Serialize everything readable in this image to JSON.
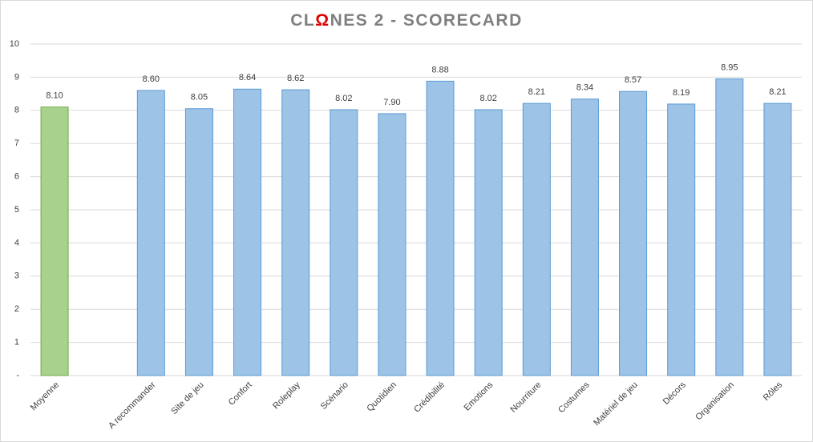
{
  "chart_data": {
    "type": "bar",
    "title": [
      {
        "text": "CL",
        "color": "#7f7f7f"
      },
      {
        "text": "Ω",
        "color": "#e00000"
      },
      {
        "text": "NES 2 - SCORECARD",
        "color": "#7f7f7f"
      }
    ],
    "categories": [
      "Moyenne",
      null,
      "A recommander",
      "Site de jeu",
      "Confort",
      "Roleplay",
      "Scénario",
      "Quotidien",
      "Crédibilité",
      "Emotions",
      "Nourriture",
      "Costumes",
      "Matériel de jeu",
      "Décors",
      "Organisation",
      "Rôles"
    ],
    "values": [
      8.1,
      null,
      8.6,
      8.05,
      8.64,
      8.62,
      8.02,
      7.9,
      8.88,
      8.02,
      8.21,
      8.34,
      8.57,
      8.19,
      8.95,
      8.21
    ],
    "value_labels": [
      "8.10",
      null,
      "8.60",
      "8.05",
      "8.64",
      "8.62",
      "8.02",
      "7.90",
      "8.88",
      "8.02",
      "8.21",
      "8.34",
      "8.57",
      "8.19",
      "8.95",
      "8.21"
    ],
    "colors": [
      "#a9d18e",
      null,
      "#9dc3e6",
      "#9dc3e6",
      "#9dc3e6",
      "#9dc3e6",
      "#9dc3e6",
      "#9dc3e6",
      "#9dc3e6",
      "#9dc3e6",
      "#9dc3e6",
      "#9dc3e6",
      "#9dc3e6",
      "#9dc3e6",
      "#9dc3e6",
      "#9dc3e6"
    ],
    "border_colors": [
      "#70ad47",
      null,
      "#5b9bd5",
      "#5b9bd5",
      "#5b9bd5",
      "#5b9bd5",
      "#5b9bd5",
      "#5b9bd5",
      "#5b9bd5",
      "#5b9bd5",
      "#5b9bd5",
      "#5b9bd5",
      "#5b9bd5",
      "#5b9bd5",
      "#5b9bd5",
      "#5b9bd5"
    ],
    "ylim": [
      0,
      10
    ],
    "yticks": [
      {
        "value": 0,
        "label": "-"
      },
      1,
      2,
      3,
      4,
      5,
      6,
      7,
      8,
      9,
      10
    ],
    "grid": true
  }
}
